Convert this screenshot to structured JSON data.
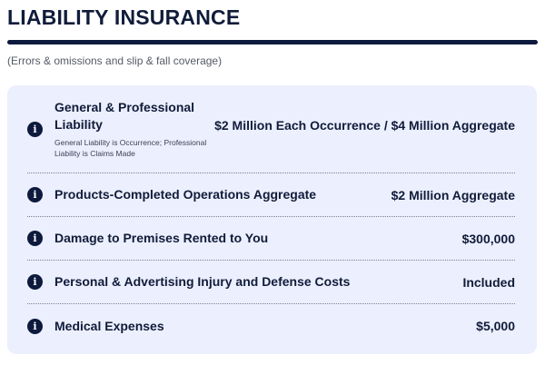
{
  "section": {
    "title": "LIABILITY INSURANCE",
    "subtitle": "(Errors & omissions and slip & fall coverage)"
  },
  "coverages": [
    {
      "label": "General & Professional Liability",
      "note": "General Liability is Occurrence; Professional Liability is Claims Made",
      "value": "$2 Million Each Occurrence / $4 Million Aggregate"
    },
    {
      "label": "Products-Completed Operations Aggregate",
      "value": "$2 Million Aggregate"
    },
    {
      "label": "Damage to Premises Rented to You",
      "value": "$300,000"
    },
    {
      "label": "Personal & Advertising Injury and Defense Costs",
      "value": "Included"
    },
    {
      "label": "Medical Expenses",
      "value": "$5,000"
    }
  ],
  "icons": {
    "info": "info-icon",
    "info_glyph": "i"
  },
  "colors": {
    "navy": "#0d1a3d",
    "card_bg": "#eceffd"
  }
}
